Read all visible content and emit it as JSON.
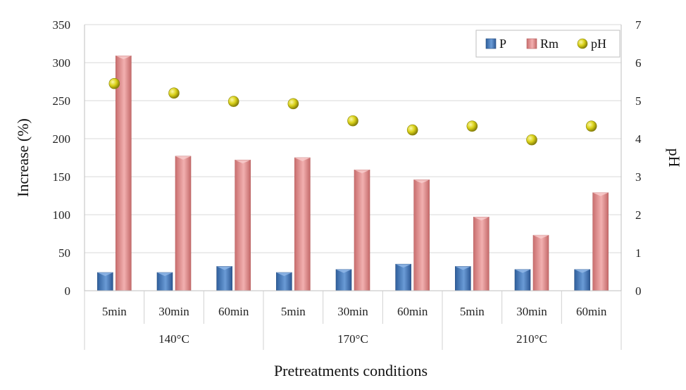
{
  "chart_data": {
    "type": "bar",
    "categories": [
      "5min",
      "30min",
      "60min",
      "5min",
      "30min",
      "60min",
      "5min",
      "30min",
      "60min"
    ],
    "groups": [
      {
        "label": "140°C",
        "span": [
          0,
          2
        ]
      },
      {
        "label": "170°C",
        "span": [
          3,
          5
        ]
      },
      {
        "label": "210°C",
        "span": [
          6,
          8
        ]
      }
    ],
    "series": [
      {
        "name": "P",
        "axis": "left",
        "kind": "bar",
        "color": "#4a7fbe",
        "values": [
          24,
          24,
          32,
          24,
          28,
          35,
          32,
          28,
          28
        ]
      },
      {
        "name": "Rm",
        "axis": "left",
        "kind": "bar",
        "color": "#e08e8e",
        "values": [
          309,
          177,
          172,
          175,
          159,
          146,
          97,
          73,
          129
        ]
      },
      {
        "name": "pH",
        "axis": "right",
        "kind": "scatter",
        "color": "#d8d11a",
        "values": [
          5.45,
          5.2,
          4.98,
          4.92,
          4.47,
          4.23,
          4.33,
          3.97,
          4.33
        ]
      }
    ],
    "ylabel": "Increase (%)",
    "y2label": "pH",
    "xlabel": "Pretreatments conditions",
    "ylim": [
      0,
      350
    ],
    "y2lim": [
      0,
      7
    ],
    "yticks": [
      "0",
      "50",
      "100",
      "150",
      "200",
      "250",
      "300",
      "350"
    ],
    "y2ticks": [
      "0",
      "1",
      "2",
      "3",
      "4",
      "5",
      "6",
      "7"
    ],
    "grid": true,
    "legend": "top-right"
  }
}
